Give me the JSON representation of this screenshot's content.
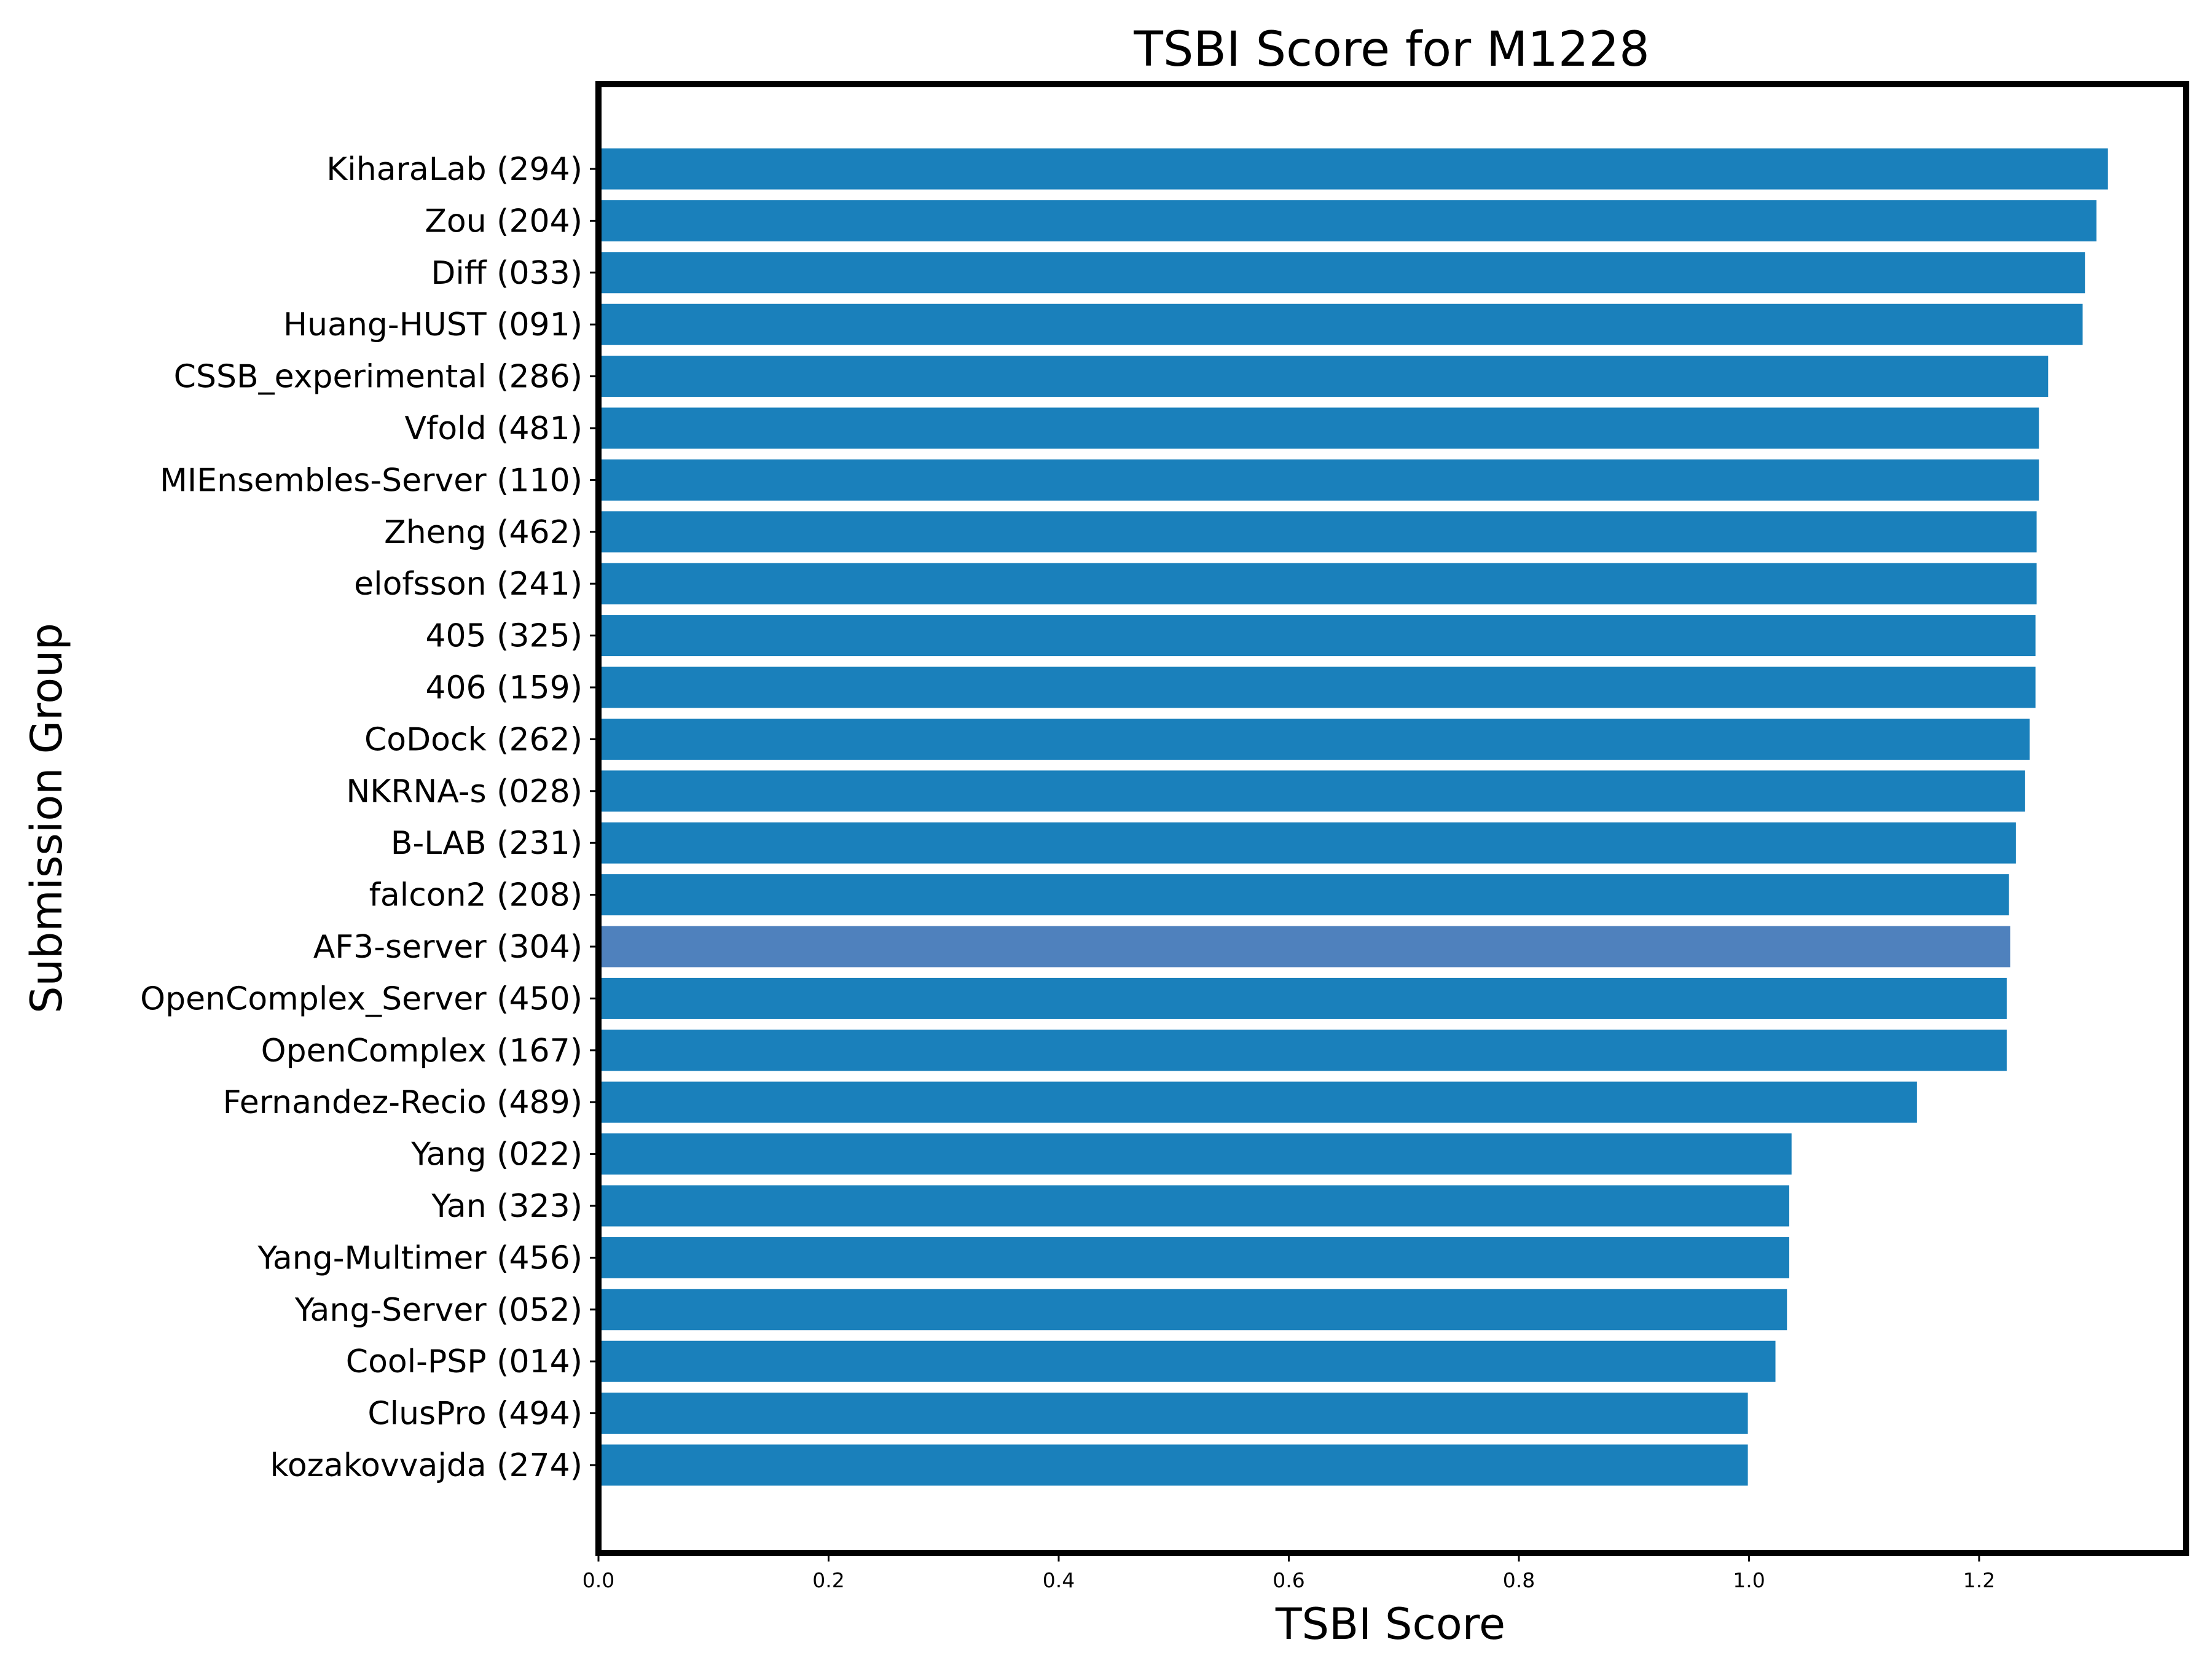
{
  "chart_data": {
    "type": "bar",
    "orientation": "horizontal",
    "title": "TSBI Score for M1228",
    "xlabel": "TSBI Score",
    "ylabel": "Submission Group",
    "xlim": [
      0,
      1.38
    ],
    "xticks": [
      "0.0",
      "0.2",
      "0.4",
      "0.6",
      "0.8",
      "1.0",
      "1.2"
    ],
    "xtick_values": [
      0.0,
      0.2,
      0.4,
      0.6,
      0.8,
      1.0,
      1.2
    ],
    "grid": false,
    "legend": "none",
    "bar_color": "#1a80bb",
    "highlight_color": "#4f81bd",
    "frame_color": "#000000",
    "categories": [
      "KiharaLab (294)",
      "Zou (204)",
      "Diff (033)",
      "Huang-HUST (091)",
      "CSSB_experimental (286)",
      "Vfold (481)",
      "MIEnsembles-Server (110)",
      "Zheng (462)",
      "elofsson (241)",
      "405 (325)",
      "406 (159)",
      "CoDock (262)",
      "NKRNA-s (028)",
      "B-LAB (231)",
      "falcon2 (208)",
      "AF3-server (304)",
      "OpenComplex_Server (450)",
      "OpenComplex (167)",
      "Fernandez-Recio (489)",
      "Yang (022)",
      "Yan (323)",
      "Yang-Multimer (456)",
      "Yang-Server (052)",
      "Cool-PSP (014)",
      "ClusPro (494)",
      "kozakovvajda (274)"
    ],
    "values": [
      1.312,
      1.302,
      1.292,
      1.29,
      1.26,
      1.252,
      1.252,
      1.25,
      1.25,
      1.249,
      1.249,
      1.244,
      1.24,
      1.232,
      1.226,
      1.227,
      1.224,
      1.224,
      1.146,
      1.037,
      1.035,
      1.035,
      1.033,
      1.023,
      0.999,
      0.999
    ],
    "highlight": [
      "AF3-server (304)"
    ]
  }
}
